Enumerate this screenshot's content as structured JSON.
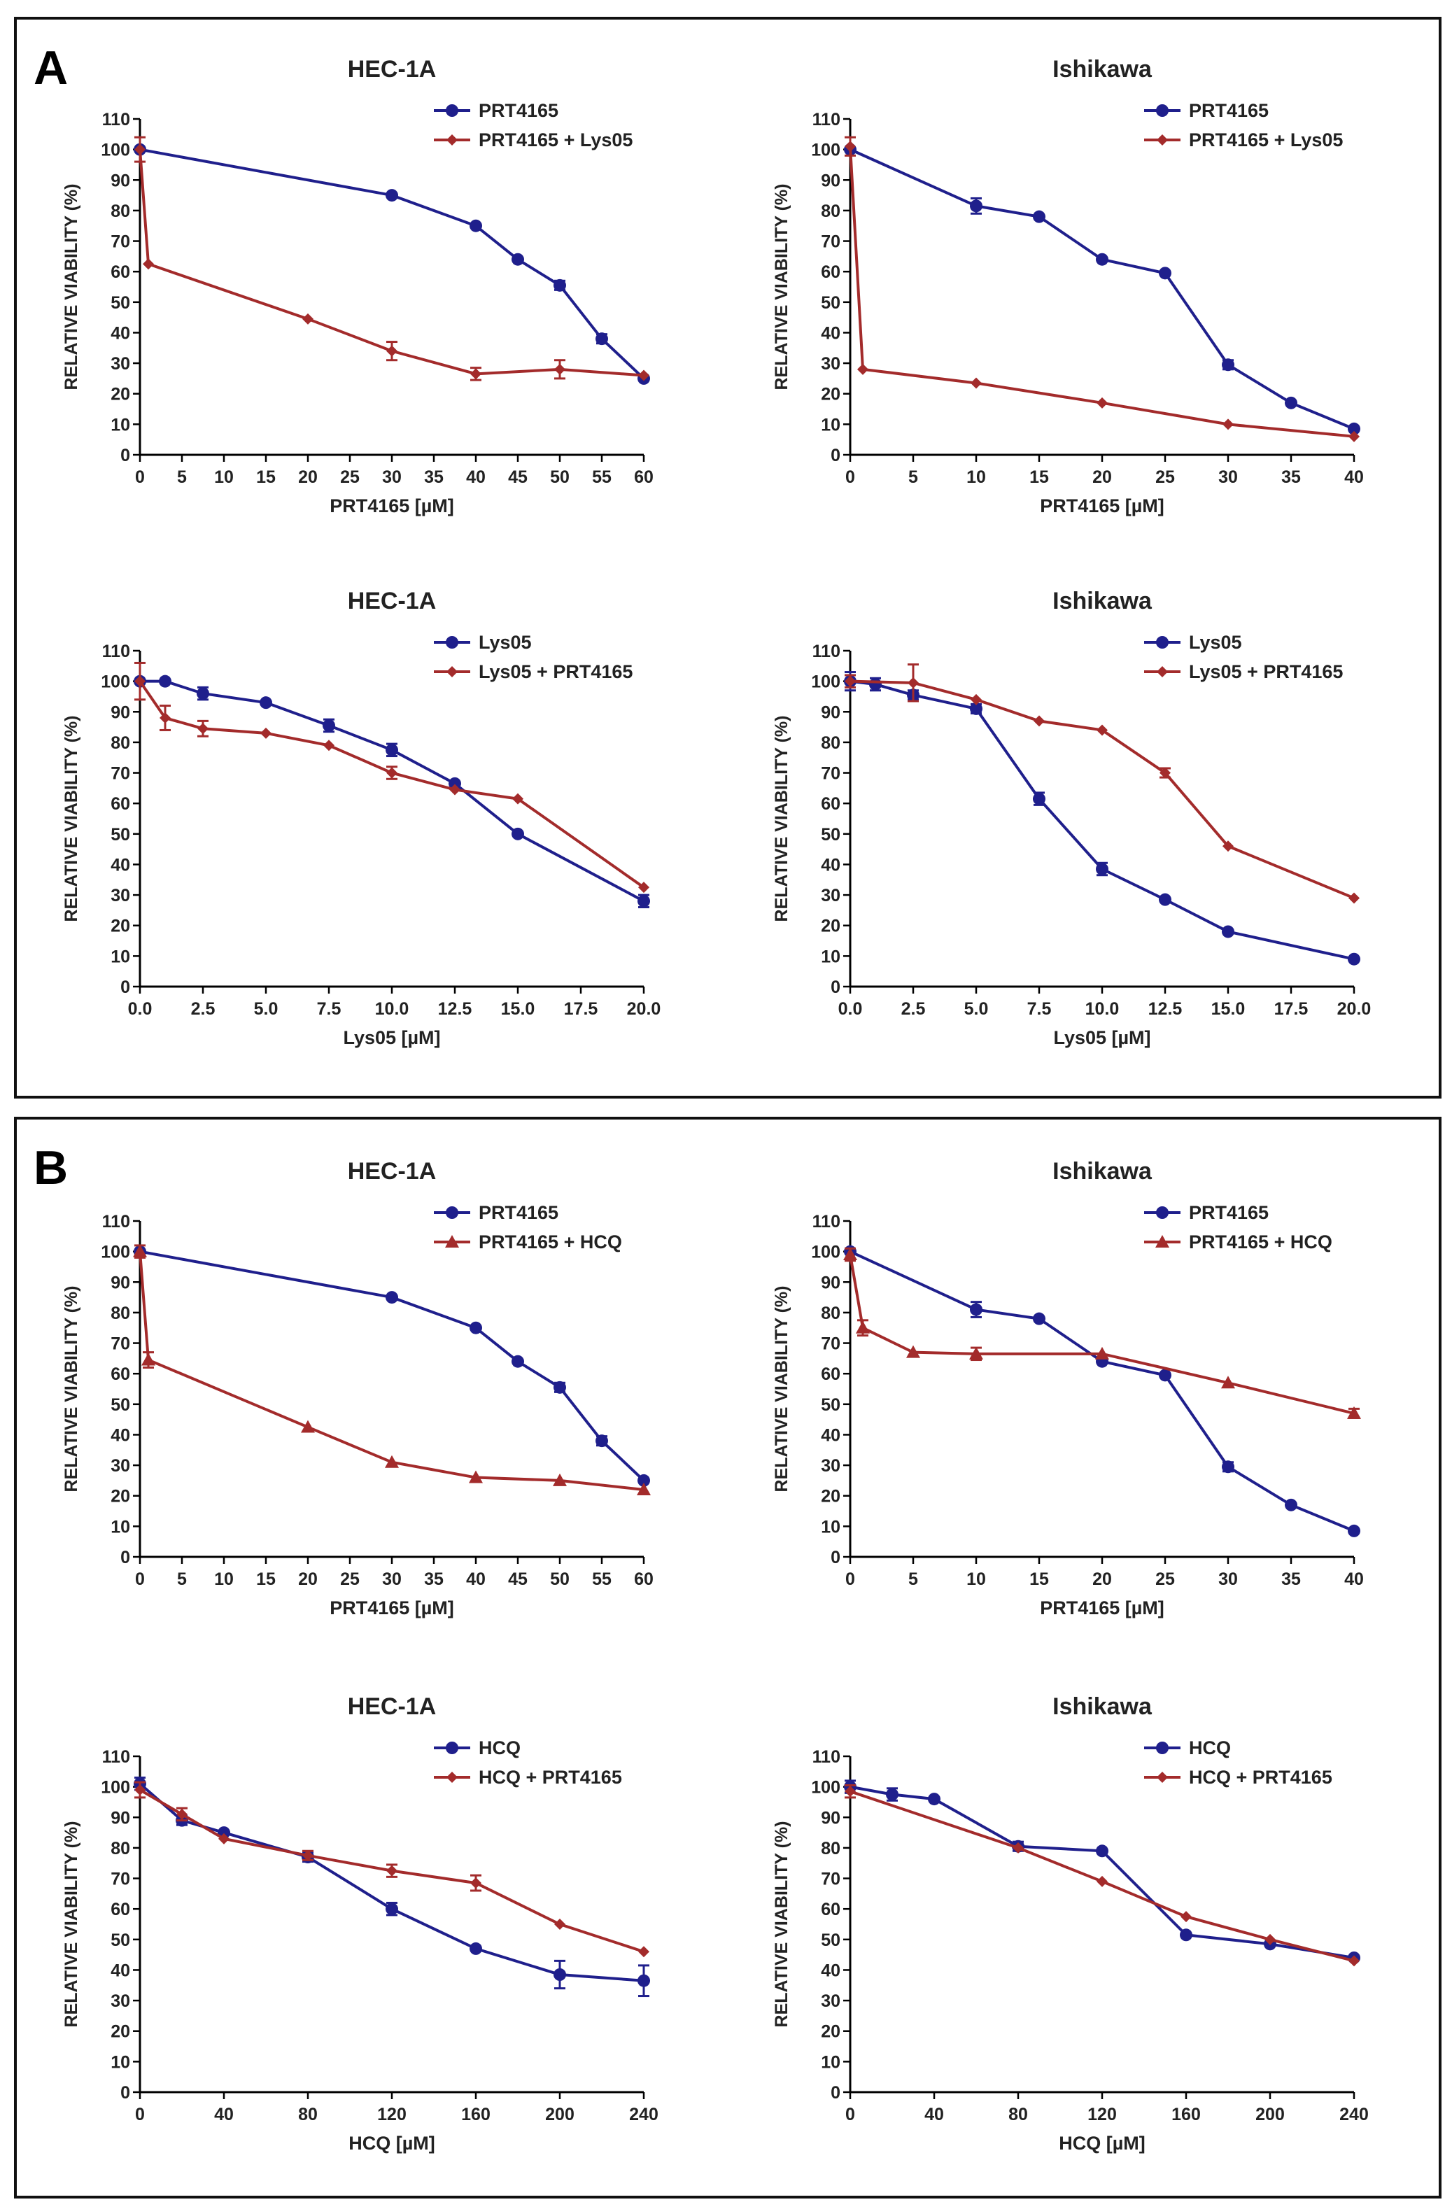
{
  "panels": [
    {
      "letter": "A"
    },
    {
      "letter": "B"
    }
  ],
  "chart_data": [
    {
      "type": "line",
      "panel": "A",
      "title": "HEC-1A",
      "xlabel": "PRT4165 [µM]",
      "ylabel": "RELATIVE VIABILITY (%)",
      "xlim": [
        0,
        60
      ],
      "ylim": [
        0,
        110
      ],
      "xticks": [
        0,
        5,
        10,
        15,
        20,
        25,
        30,
        35,
        40,
        45,
        50,
        55,
        60
      ],
      "xtick_labels": [
        "0",
        "5",
        "10",
        "15",
        "20",
        "25",
        "30",
        "35",
        "40",
        "45",
        "50",
        "55",
        "60"
      ],
      "yticks": [
        0,
        10,
        20,
        30,
        40,
        50,
        60,
        70,
        80,
        90,
        100,
        110
      ],
      "series": [
        {
          "name": "PRT4165",
          "color": "#1f1f8c",
          "marker": "circle",
          "x": [
            0,
            30,
            40,
            45,
            50,
            55,
            60
          ],
          "y": [
            100,
            85,
            75,
            64,
            55.5,
            38,
            25
          ],
          "err": [
            0,
            0,
            0,
            0,
            1.5,
            1.5,
            0
          ]
        },
        {
          "name": "PRT4165 + Lys05",
          "color": "#a32b2b",
          "marker": "diamond",
          "x": [
            0,
            1,
            20,
            30,
            40,
            50,
            60
          ],
          "y": [
            100,
            62.5,
            44.5,
            34,
            26.5,
            28,
            26
          ],
          "err": [
            4,
            0,
            0,
            3,
            2,
            3,
            0
          ]
        }
      ]
    },
    {
      "type": "line",
      "panel": "A",
      "title": "Ishikawa",
      "xlabel": "PRT4165 [µM]",
      "ylabel": "RELATIVE VIABILITY (%)",
      "xlim": [
        0,
        40
      ],
      "ylim": [
        0,
        110
      ],
      "xticks": [
        0,
        5,
        10,
        15,
        20,
        25,
        30,
        35,
        40
      ],
      "xtick_labels": [
        "0",
        "5",
        "10",
        "15",
        "20",
        "25",
        "30",
        "35",
        "40"
      ],
      "yticks": [
        0,
        10,
        20,
        30,
        40,
        50,
        60,
        70,
        80,
        90,
        100,
        110
      ],
      "series": [
        {
          "name": "PRT4165",
          "color": "#1f1f8c",
          "marker": "circle",
          "x": [
            0,
            10,
            15,
            20,
            25,
            30,
            35,
            40
          ],
          "y": [
            100,
            81.5,
            78,
            64,
            59.5,
            29.5,
            17,
            8.5
          ],
          "err": [
            0,
            2.5,
            0,
            0,
            0,
            1.5,
            0,
            0
          ]
        },
        {
          "name": "PRT4165 + Lys05",
          "color": "#a32b2b",
          "marker": "diamond",
          "x": [
            0,
            1,
            10,
            20,
            30,
            40
          ],
          "y": [
            101,
            28,
            23.5,
            17,
            10,
            6
          ],
          "err": [
            3,
            0,
            0,
            0,
            0,
            0
          ]
        }
      ]
    },
    {
      "type": "line",
      "panel": "A",
      "title": "HEC-1A",
      "xlabel": "Lys05 [µM]",
      "ylabel": "RELATIVE VIABILITY (%)",
      "xlim": [
        0,
        20
      ],
      "ylim": [
        0,
        110
      ],
      "xticks": [
        0,
        2.5,
        5,
        7.5,
        10,
        12.5,
        15,
        17.5,
        20
      ],
      "xtick_labels": [
        "0.0",
        "2.5",
        "5.0",
        "7.5",
        "10.0",
        "12.5",
        "15.0",
        "17.5",
        "20.0"
      ],
      "yticks": [
        0,
        10,
        20,
        30,
        40,
        50,
        60,
        70,
        80,
        90,
        100,
        110
      ],
      "series": [
        {
          "name": "Lys05",
          "color": "#1f1f8c",
          "marker": "circle",
          "x": [
            0,
            1,
            2.5,
            5,
            7.5,
            10,
            12.5,
            15,
            20
          ],
          "y": [
            100,
            100,
            96,
            93,
            85.5,
            77.5,
            66.5,
            50,
            28
          ],
          "err": [
            0,
            0,
            2,
            0,
            2,
            2,
            0,
            0,
            2
          ]
        },
        {
          "name": "Lys05 + PRT4165",
          "color": "#a32b2b",
          "marker": "diamond",
          "x": [
            0,
            1,
            2.5,
            5,
            7.5,
            10,
            12.5,
            15,
            20
          ],
          "y": [
            100,
            88,
            84.5,
            83,
            79,
            70,
            64.5,
            61.5,
            32.5
          ],
          "err": [
            6,
            4,
            2.5,
            0,
            0,
            2,
            0,
            0,
            0
          ]
        }
      ]
    },
    {
      "type": "line",
      "panel": "A",
      "title": "Ishikawa",
      "xlabel": "Lys05 [µM]",
      "ylabel": "RELATIVE VIABILITY (%)",
      "xlim": [
        0,
        20
      ],
      "ylim": [
        0,
        110
      ],
      "xticks": [
        0,
        2.5,
        5,
        7.5,
        10,
        12.5,
        15,
        17.5,
        20
      ],
      "xtick_labels": [
        "0.0",
        "2.5",
        "5.0",
        "7.5",
        "10.0",
        "12.5",
        "15.0",
        "17.5",
        "20.0"
      ],
      "yticks": [
        0,
        10,
        20,
        30,
        40,
        50,
        60,
        70,
        80,
        90,
        100,
        110
      ],
      "series": [
        {
          "name": "Lys05",
          "color": "#1f1f8c",
          "marker": "circle",
          "x": [
            0,
            1,
            2.5,
            5,
            7.5,
            10,
            12.5,
            15,
            20
          ],
          "y": [
            100,
            99,
            95.5,
            91,
            61.5,
            38.5,
            28.5,
            18,
            9
          ],
          "err": [
            3,
            2,
            1.5,
            1.5,
            2,
            2,
            0,
            0,
            0
          ]
        },
        {
          "name": "Lys05 + PRT4165",
          "color": "#a32b2b",
          "marker": "diamond",
          "x": [
            0,
            2.5,
            5,
            7.5,
            10,
            12.5,
            15,
            20
          ],
          "y": [
            100,
            99.5,
            94,
            87,
            84,
            70,
            46,
            29
          ],
          "err": [
            2,
            6,
            0,
            0,
            0,
            1.5,
            0,
            0
          ]
        }
      ]
    },
    {
      "type": "line",
      "panel": "B",
      "title": "HEC-1A",
      "xlabel": "PRT4165 [µM]",
      "ylabel": "RELATIVE VIABILITY (%)",
      "xlim": [
        0,
        60
      ],
      "ylim": [
        0,
        110
      ],
      "xticks": [
        0,
        5,
        10,
        15,
        20,
        25,
        30,
        35,
        40,
        45,
        50,
        55,
        60
      ],
      "xtick_labels": [
        "0",
        "5",
        "10",
        "15",
        "20",
        "25",
        "30",
        "35",
        "40",
        "45",
        "50",
        "55",
        "60"
      ],
      "yticks": [
        0,
        10,
        20,
        30,
        40,
        50,
        60,
        70,
        80,
        90,
        100,
        110
      ],
      "series": [
        {
          "name": "PRT4165",
          "color": "#1f1f8c",
          "marker": "circle",
          "x": [
            0,
            30,
            40,
            45,
            50,
            55,
            60
          ],
          "y": [
            100,
            85,
            75,
            64,
            55.5,
            38,
            25
          ],
          "err": [
            0,
            0,
            0,
            0,
            1.5,
            1.5,
            0
          ]
        },
        {
          "name": "PRT4165 + HCQ",
          "color": "#a32b2b",
          "marker": "triangle",
          "x": [
            0,
            1,
            20,
            30,
            40,
            50,
            60
          ],
          "y": [
            100,
            64.5,
            42.5,
            31,
            26,
            25,
            22
          ],
          "err": [
            2,
            2.5,
            0,
            0,
            0,
            0,
            0
          ]
        }
      ]
    },
    {
      "type": "line",
      "panel": "B",
      "title": "Ishikawa",
      "xlabel": "PRT4165 [µM]",
      "ylabel": "RELATIVE VIABILITY (%)",
      "xlim": [
        0,
        40
      ],
      "ylim": [
        0,
        110
      ],
      "xticks": [
        0,
        5,
        10,
        15,
        20,
        25,
        30,
        35,
        40
      ],
      "xtick_labels": [
        "0",
        "5",
        "10",
        "15",
        "20",
        "25",
        "30",
        "35",
        "40"
      ],
      "yticks": [
        0,
        10,
        20,
        30,
        40,
        50,
        60,
        70,
        80,
        90,
        100,
        110
      ],
      "series": [
        {
          "name": "PRT4165",
          "color": "#1f1f8c",
          "marker": "circle",
          "x": [
            0,
            10,
            15,
            20,
            25,
            30,
            35,
            40
          ],
          "y": [
            100,
            81,
            78,
            64,
            59.5,
            29.5,
            17,
            8.5
          ],
          "err": [
            0,
            2.5,
            0,
            0,
            0,
            1.5,
            0,
            0
          ]
        },
        {
          "name": "PRT4165 + HCQ",
          "color": "#a32b2b",
          "marker": "triangle",
          "x": [
            0,
            1,
            5,
            10,
            20,
            30,
            40
          ],
          "y": [
            99,
            75,
            67,
            66.5,
            66.5,
            57,
            47
          ],
          "err": [
            2,
            2.5,
            0,
            2,
            0,
            0,
            1.5
          ]
        }
      ]
    },
    {
      "type": "line",
      "panel": "B",
      "title": "HEC-1A",
      "xlabel": "HCQ [µM]",
      "ylabel": "RELATIVE VIABILITY (%)",
      "xlim": [
        0,
        240
      ],
      "ylim": [
        0,
        110
      ],
      "xticks": [
        0,
        40,
        80,
        120,
        160,
        200,
        240
      ],
      "xtick_labels": [
        "0",
        "40",
        "80",
        "120",
        "160",
        "200",
        "240"
      ],
      "yticks": [
        0,
        10,
        20,
        30,
        40,
        50,
        60,
        70,
        80,
        90,
        100,
        110
      ],
      "series": [
        {
          "name": "HCQ",
          "color": "#1f1f8c",
          "marker": "circle",
          "x": [
            0,
            20,
            40,
            80,
            120,
            160,
            200,
            240
          ],
          "y": [
            101,
            89,
            85,
            77,
            60,
            47,
            38.5,
            36.5
          ],
          "err": [
            2,
            1.5,
            0,
            1.5,
            2,
            0,
            4.5,
            5
          ]
        },
        {
          "name": "HCQ + PRT4165",
          "color": "#a32b2b",
          "marker": "diamond",
          "x": [
            0,
            20,
            40,
            80,
            120,
            160,
            200,
            240
          ],
          "y": [
            99,
            91,
            83,
            77.5,
            72.5,
            68.5,
            55,
            46
          ],
          "err": [
            2.5,
            2,
            0,
            1.5,
            2,
            2.5,
            0,
            0
          ]
        }
      ]
    },
    {
      "type": "line",
      "panel": "B",
      "title": "Ishikawa",
      "xlabel": "HCQ [µM]",
      "ylabel": "RELATIVE VIABILITY (%)",
      "xlim": [
        0,
        240
      ],
      "ylim": [
        0,
        110
      ],
      "xticks": [
        0,
        40,
        80,
        120,
        160,
        200,
        240
      ],
      "xtick_labels": [
        "0",
        "40",
        "80",
        "120",
        "160",
        "200",
        "240"
      ],
      "yticks": [
        0,
        10,
        20,
        30,
        40,
        50,
        60,
        70,
        80,
        90,
        100,
        110
      ],
      "series": [
        {
          "name": "HCQ",
          "color": "#1f1f8c",
          "marker": "circle",
          "x": [
            0,
            20,
            40,
            80,
            120,
            160,
            200,
            240
          ],
          "y": [
            100,
            97.5,
            96,
            80.5,
            79,
            51.5,
            48.5,
            44
          ],
          "err": [
            2,
            2,
            0,
            1.5,
            0,
            0,
            0,
            0
          ]
        },
        {
          "name": "HCQ + PRT4165",
          "color": "#a32b2b",
          "marker": "diamond",
          "x": [
            0,
            80,
            120,
            160,
            200,
            240
          ],
          "y": [
            98.5,
            80,
            69,
            57.5,
            50,
            43
          ],
          "err": [
            2,
            0,
            0,
            0,
            0,
            0
          ]
        }
      ]
    }
  ]
}
